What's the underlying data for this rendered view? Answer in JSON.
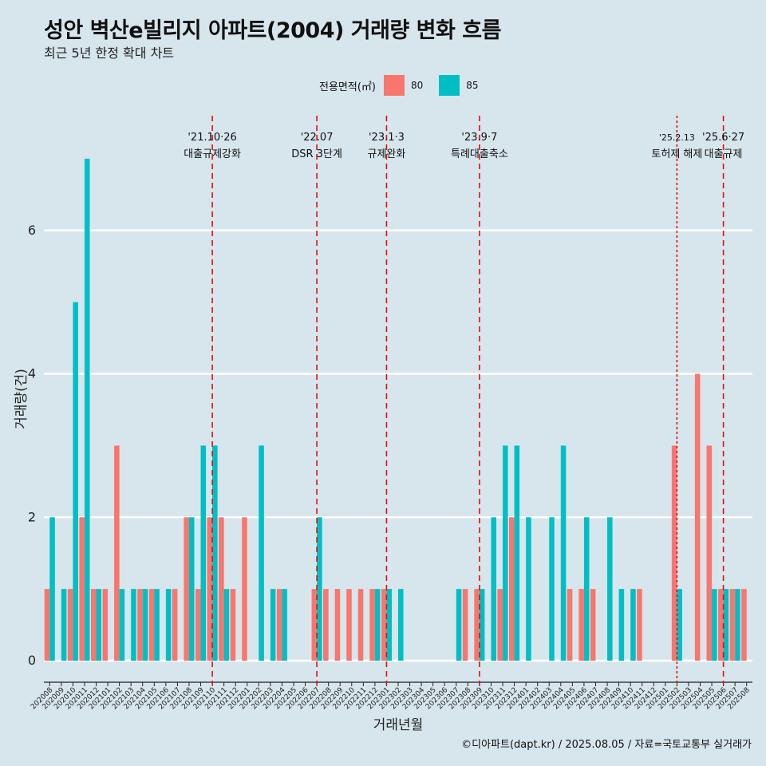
{
  "title": "성안 벽산e빌리지 아파트(2004) 거래량 변화 흐름",
  "subtitle": "최근 5년 한정 확대 차트",
  "caption": "©디아파트(dapt.kr) / 2025.08.05 / 자료=국토교통부 실거래가",
  "legend": {
    "title": "전용면적(㎡)",
    "items": [
      {
        "label": "80",
        "color": "#f8766d"
      },
      {
        "label": "85",
        "color": "#00bfc4"
      }
    ]
  },
  "chart_data": {
    "type": "bar",
    "title": "성안 벽산e빌리지 아파트(2004) 거래량 변화 흐름",
    "xlabel": "거래년월",
    "ylabel": "거래량(건)",
    "ylim": [
      -0.3,
      7.6
    ],
    "yticks": [
      0,
      2,
      4,
      6
    ],
    "categories": [
      "202008",
      "202009",
      "202010",
      "202011",
      "202012",
      "202101",
      "202102",
      "202103",
      "202104",
      "202105",
      "202106",
      "202107",
      "202108",
      "202109",
      "202110",
      "202111",
      "202112",
      "202201",
      "202202",
      "202203",
      "202204",
      "202205",
      "202206",
      "202207",
      "202208",
      "202209",
      "202210",
      "202211",
      "202212",
      "202301",
      "202302",
      "202303",
      "202304",
      "202305",
      "202306",
      "202307",
      "202308",
      "202309",
      "202310",
      "202311",
      "202312",
      "202401",
      "202402",
      "202403",
      "202404",
      "202405",
      "202406",
      "202407",
      "202408",
      "202409",
      "202410",
      "202411",
      "202412",
      "202501",
      "202502",
      "202503",
      "202504",
      "202505",
      "202506",
      "202507",
      "202508"
    ],
    "series": [
      {
        "name": "80",
        "color": "#f8766d",
        "values": [
          1,
          0,
          1,
          2,
          1,
          1,
          3,
          0,
          1,
          1,
          0,
          1,
          2,
          1,
          2,
          2,
          1,
          2,
          0,
          0,
          1,
          0,
          0,
          1,
          1,
          1,
          1,
          1,
          1,
          1,
          0,
          0,
          0,
          0,
          0,
          0,
          1,
          1,
          0,
          1,
          2,
          0,
          0,
          0,
          0,
          1,
          1,
          1,
          0,
          0,
          0,
          1,
          0,
          0,
          3,
          0,
          4,
          3,
          1,
          1,
          1
        ]
      },
      {
        "name": "85",
        "color": "#00bfc4",
        "values": [
          2,
          1,
          5,
          7,
          1,
          0,
          1,
          1,
          1,
          1,
          1,
          0,
          2,
          3,
          3,
          1,
          0,
          0,
          3,
          1,
          1,
          0,
          0,
          2,
          0,
          0,
          0,
          0,
          1,
          1,
          1,
          0,
          0,
          0,
          0,
          1,
          0,
          1,
          2,
          3,
          3,
          2,
          0,
          2,
          3,
          0,
          2,
          0,
          2,
          1,
          1,
          0,
          0,
          0,
          1,
          0,
          0,
          1,
          1,
          1,
          0
        ]
      }
    ],
    "annotations": [
      {
        "category": "202110",
        "date": "'21.10·26",
        "label": "대출규제강화",
        "style": "dashed"
      },
      {
        "category": "202207",
        "date": "'22.07",
        "label": "DSR 3단계",
        "style": "dashed"
      },
      {
        "category": "202301",
        "date": "'23.1·3",
        "label": "규제완화",
        "style": "dashed"
      },
      {
        "category": "202309",
        "date": "'23.9·7",
        "label": "특례대출축소",
        "style": "dashed"
      },
      {
        "category": "202502",
        "date": "'25.2.13",
        "label": "토허제 해제",
        "style": "dotted"
      },
      {
        "category": "202506",
        "date": "'25.6·27",
        "label": "대출규제",
        "style": "dashed"
      }
    ]
  }
}
